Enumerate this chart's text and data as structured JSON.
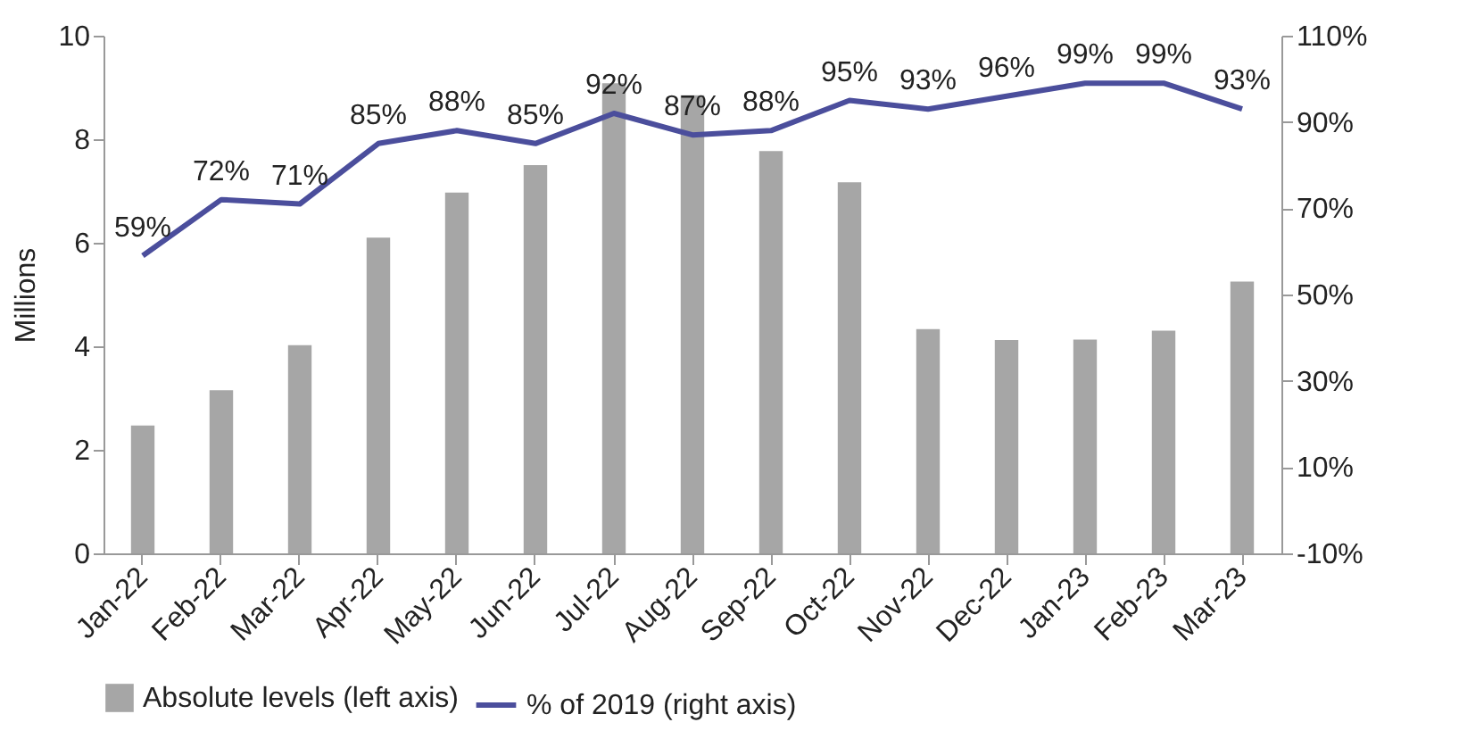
{
  "chart_data": {
    "type": "bar",
    "ylabel": "Millions",
    "categories": [
      "Jan-22",
      "Feb-22",
      "Mar-22",
      "Apr-22",
      "May-22",
      "Jun-22",
      "Jul-22",
      "Aug-22",
      "Sep-22",
      "Oct-22",
      "Nov-22",
      "Dec-22",
      "Jan-23",
      "Feb-23",
      "Mar-23"
    ],
    "series": [
      {
        "name": "Absolute levels (left axis)",
        "color": "#a6a6a6",
        "values": [
          2.47,
          3.15,
          4.02,
          6.1,
          6.97,
          7.5,
          9.08,
          8.85,
          7.77,
          7.17,
          4.33,
          4.12,
          4.13,
          4.3,
          5.25
        ]
      },
      {
        "name": "% of 2019 (right axis)",
        "type": "line",
        "axis": "y2",
        "color": "#4b4e9c",
        "values": [
          59,
          72,
          71,
          85,
          88,
          85,
          92,
          87,
          88,
          95,
          93,
          96,
          99,
          99,
          93
        ],
        "value_labels": [
          "59%",
          "72%",
          "71%",
          "85%",
          "88%",
          "85%",
          "92%",
          "87%",
          "88%",
          "95%",
          "93%",
          "96%",
          "99%",
          "99%",
          "93%"
        ]
      }
    ],
    "ylim": [
      0,
      10
    ],
    "yticks": [
      0,
      2,
      4,
      6,
      8,
      10
    ],
    "y2lim": [
      -10,
      110
    ],
    "y2ticks": [
      {
        "value": -10,
        "label": "-10%"
      },
      {
        "value": 10,
        "label": "10%"
      },
      {
        "value": 30,
        "label": "30%"
      },
      {
        "value": 50,
        "label": "50%"
      },
      {
        "value": 70,
        "label": "70%"
      },
      {
        "value": 90,
        "label": "90%"
      },
      {
        "value": 110,
        "label": "110%"
      }
    ],
    "grid": false,
    "legend": "bottom"
  }
}
